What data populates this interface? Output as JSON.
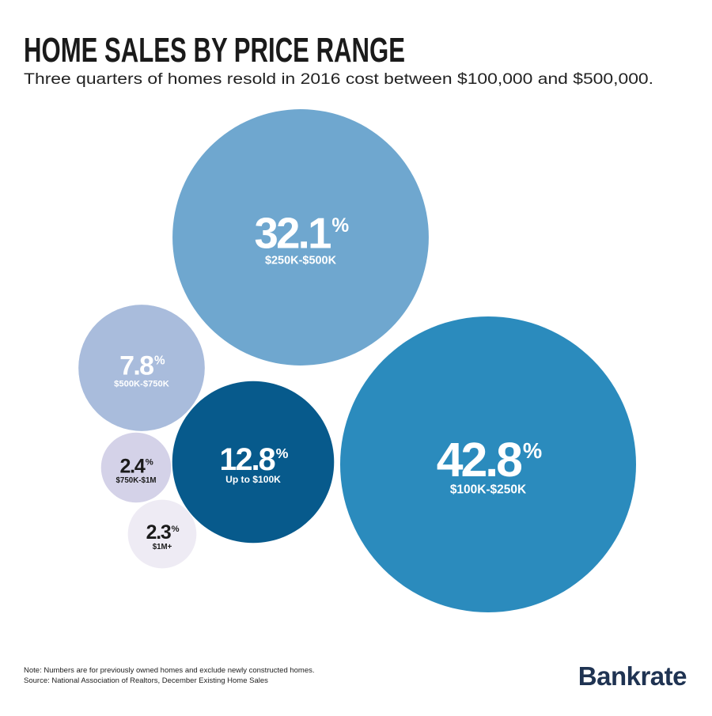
{
  "chart_data": {
    "type": "bubble",
    "title": "HOME SALES BY PRICE RANGE",
    "subtitle": "Three quarters of homes resold in 2016 cost between $100,000 and $500,000.",
    "categories": [
      "$250K-$500K",
      "$500K-$750K",
      "$750K-$1M",
      "$1M+",
      "Up to $100K",
      "$100K-$250K"
    ],
    "values": [
      32.1,
      7.8,
      2.4,
      2.3,
      12.8,
      42.8
    ],
    "value_labels": [
      "32.1%",
      "7.8%",
      "2.4%",
      "2.3%",
      "12.8%",
      "42.8%"
    ],
    "colors": [
      "#6fa7cf",
      "#a9bcdc",
      "#d4d2e8",
      "#eeebf4",
      "#075a8c",
      "#2b8bbd"
    ],
    "note": "Note: Numbers are for previously owned homes and exclude newly constructed homes.",
    "source": "Source: National Association of Realtors, December Existing Home Sales",
    "brand": "Bankrate"
  }
}
